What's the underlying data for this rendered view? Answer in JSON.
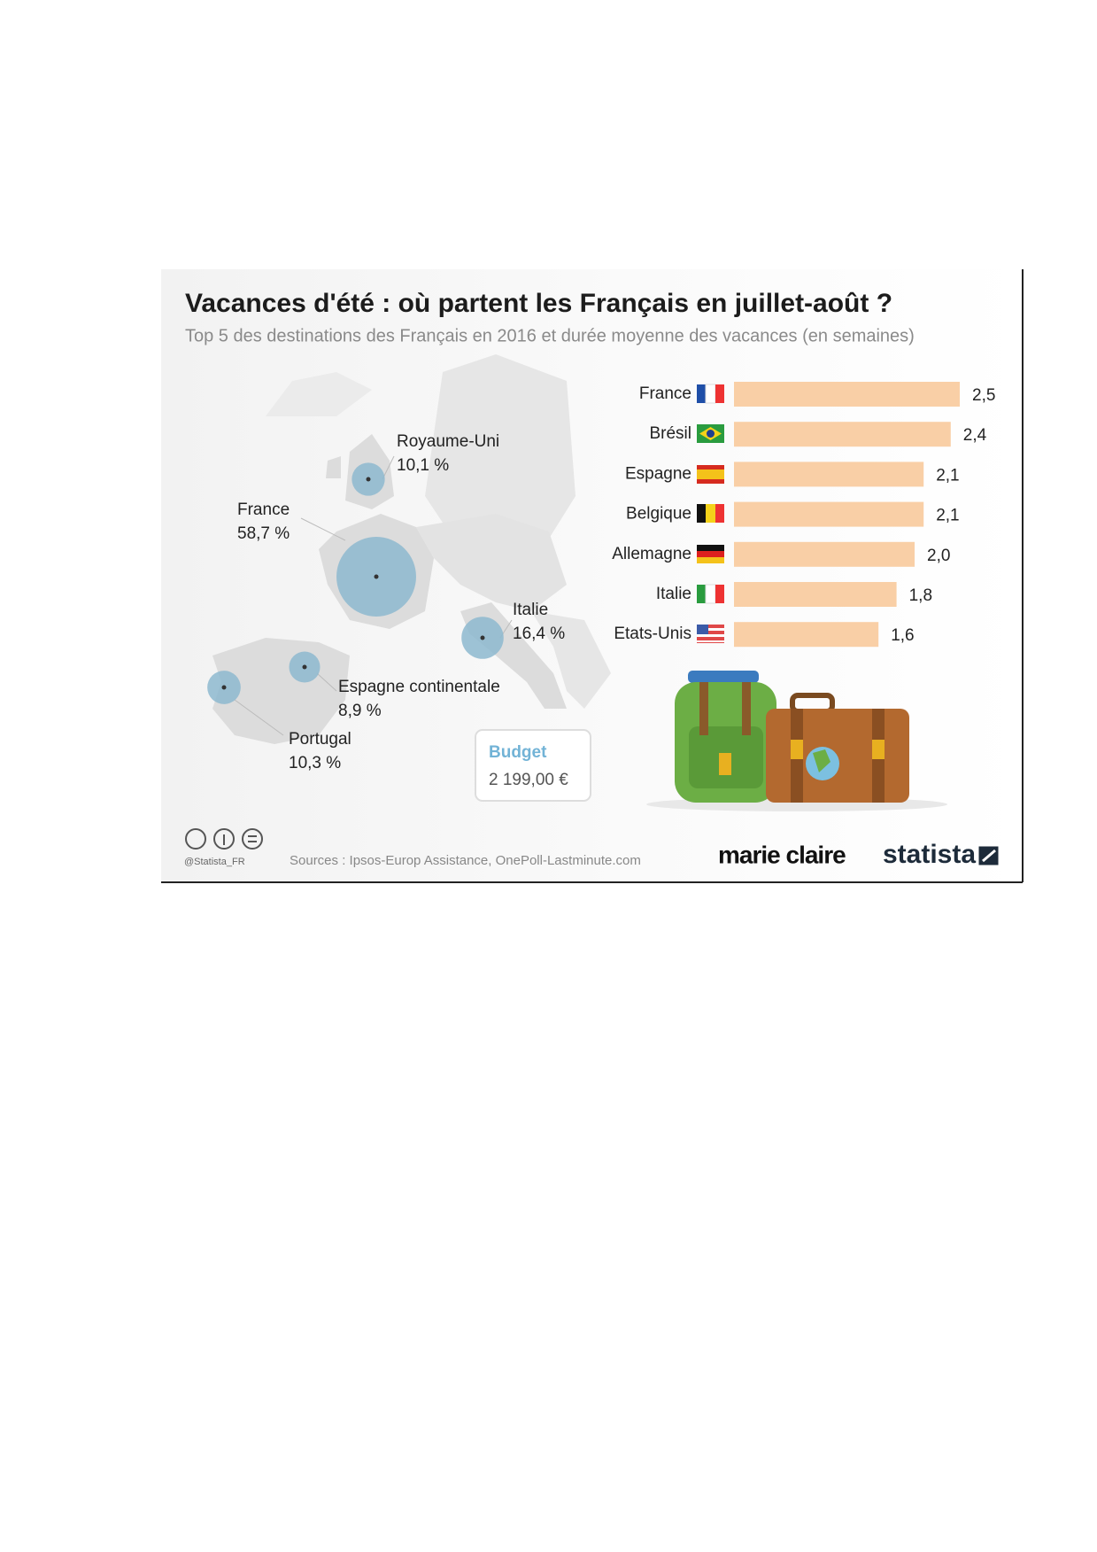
{
  "header": {
    "title": "Vacances d'été : où partent les Français en juillet-août ?",
    "subtitle": "Top 5 des destinations des Français en 2016 et durée moyenne des vacances (en semaines)"
  },
  "chart_data": [
    {
      "type": "bar",
      "orientation": "horizontal",
      "categories": [
        "France",
        "Brésil",
        "Espagne",
        "Belgique",
        "Allemagne",
        "Italie",
        "Etats-Unis"
      ],
      "values": [
        2.5,
        2.4,
        2.1,
        2.1,
        2.0,
        1.8,
        1.6
      ],
      "value_labels": [
        "2,5",
        "2,4",
        "2,1",
        "2,1",
        "2,0",
        "1,8",
        "1,6"
      ],
      "color": "#f9cfa6"
    },
    {
      "type": "bubble-map",
      "categories": [
        "Royaume-Uni",
        "France",
        "Italie",
        "Espagne continentale",
        "Portugal"
      ],
      "values": [
        10.1,
        58.7,
        16.4,
        8.9,
        10.3
      ],
      "value_labels": [
        "10,1 %",
        "58,7 %",
        "16,4 %",
        "8,9 %",
        "10,3 %"
      ],
      "color": "#8db8cf"
    }
  ],
  "budget": {
    "label": "Budget",
    "value": "2 199,00 €"
  },
  "footer": {
    "handle": "@Statista_FR",
    "source": "Sources : Ipsos-Europ Assistance, OnePoll-Lastminute.com",
    "brands": [
      "marie claire",
      "statista"
    ]
  }
}
